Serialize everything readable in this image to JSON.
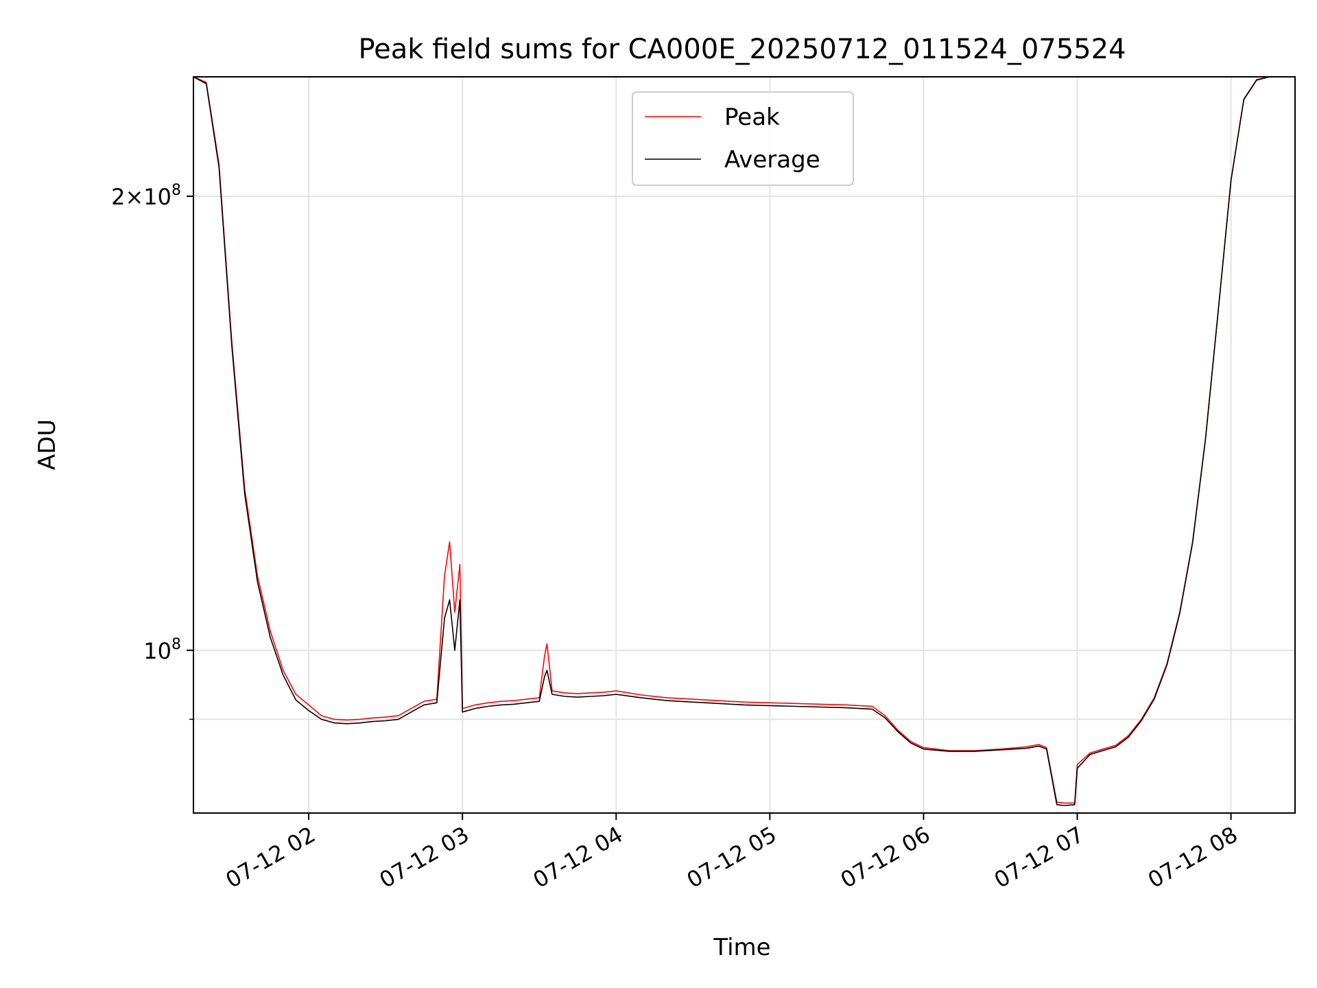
{
  "chart_data": {
    "type": "line",
    "title": "Peak field sums for CA000E_20250712_011524_075524",
    "xlabel": "Time",
    "ylabel": "ADU",
    "yscale": "log",
    "xlim": [
      "2025-07-12 01:15",
      "2025-07-12 08:25"
    ],
    "ylim": [
      78000000,
      240000000
    ],
    "grid": true,
    "legend_position": "top-center",
    "x_ticks": [
      "07-12 02",
      "07-12 03",
      "07-12 04",
      "07-12 05",
      "07-12 06",
      "07-12 07",
      "07-12 08"
    ],
    "x_tick_values": [
      "2025-07-12 02:00",
      "2025-07-12 03:00",
      "2025-07-12 04:00",
      "2025-07-12 05:00",
      "2025-07-12 06:00",
      "2025-07-12 07:00",
      "2025-07-12 08:00"
    ],
    "y_ticks": [
      {
        "value": 100000000,
        "base": "10",
        "exp": "8",
        "mantissa": ""
      },
      {
        "value": 200000000,
        "base": "10",
        "exp": "8",
        "mantissa": "2"
      }
    ],
    "y_minor_ticks": [
      90000000
    ],
    "x": [
      "01:15",
      "01:20",
      "01:25",
      "01:30",
      "01:35",
      "01:40",
      "01:45",
      "01:50",
      "01:55",
      "02:00",
      "02:05",
      "02:10",
      "02:15",
      "02:20",
      "02:25",
      "02:30",
      "02:35",
      "02:40",
      "02:45",
      "02:50",
      "02:53",
      "02:55",
      "02:57",
      "02:59",
      "03:00",
      "03:05",
      "03:10",
      "03:15",
      "03:20",
      "03:25",
      "03:30",
      "03:32",
      "03:33",
      "03:35",
      "03:40",
      "03:45",
      "03:50",
      "03:55",
      "04:00",
      "04:10",
      "04:20",
      "04:30",
      "04:40",
      "04:50",
      "05:00",
      "05:10",
      "05:20",
      "05:30",
      "05:40",
      "05:45",
      "05:50",
      "05:55",
      "06:00",
      "06:10",
      "06:20",
      "06:30",
      "06:40",
      "06:45",
      "06:48",
      "06:52",
      "06:55",
      "06:59",
      "07:00",
      "07:05",
      "07:10",
      "07:15",
      "07:20",
      "07:25",
      "07:30",
      "07:35",
      "07:40",
      "07:45",
      "07:50",
      "07:55",
      "08:00",
      "08:05",
      "08:10",
      "08:15",
      "08:20",
      "08:25"
    ],
    "series": [
      {
        "name": "Peak",
        "color": "#ff0000",
        "values": [
          240000000,
          238000000,
          210000000,
          160000000,
          128000000,
          112000000,
          103000000,
          97000000,
          93500000,
          92000000,
          90500000,
          90000000,
          89900000,
          90000000,
          90200000,
          90300000,
          90500000,
          91500000,
          92500000,
          92800000,
          112000000,
          118000000,
          106000000,
          114000000,
          91500000,
          92000000,
          92300000,
          92500000,
          92600000,
          92800000,
          93000000,
          99000000,
          101000000,
          94000000,
          93700000,
          93600000,
          93700000,
          93800000,
          94000000,
          93400000,
          93000000,
          92800000,
          92600000,
          92400000,
          92300000,
          92200000,
          92100000,
          92000000,
          91800000,
          90500000,
          88500000,
          87000000,
          86200000,
          85800000,
          85800000,
          86000000,
          86300000,
          86600000,
          86200000,
          79300000,
          79200000,
          79200000,
          84000000,
          85500000,
          86000000,
          86500000,
          87800000,
          90000000,
          93000000,
          98000000,
          106000000,
          118000000,
          138000000,
          168000000,
          205000000,
          232000000,
          239000000,
          240000000,
          240000000,
          240000000
        ]
      },
      {
        "name": "Average",
        "color": "#000000",
        "values": [
          240000000,
          237500000,
          209000000,
          159000000,
          127000000,
          111000000,
          102000000,
          96300000,
          92700000,
          91200000,
          90000000,
          89500000,
          89400000,
          89500000,
          89700000,
          89800000,
          90000000,
          91000000,
          92000000,
          92300000,
          105000000,
          108000000,
          100000000,
          108000000,
          91000000,
          91500000,
          91800000,
          92000000,
          92100000,
          92300000,
          92500000,
          96000000,
          97000000,
          93500000,
          93200000,
          93100000,
          93200000,
          93300000,
          93500000,
          93000000,
          92600000,
          92400000,
          92200000,
          92000000,
          91900000,
          91800000,
          91700000,
          91600000,
          91400000,
          90200000,
          88300000,
          86800000,
          86000000,
          85700000,
          85700000,
          85900000,
          86100000,
          86400000,
          86000000,
          79000000,
          78900000,
          79000000,
          83500000,
          85300000,
          85800000,
          86300000,
          87600000,
          89800000,
          92800000,
          97800000,
          105800000,
          117800000,
          137800000,
          167800000,
          204800000,
          231800000,
          238800000,
          240000000,
          240000000,
          240000000
        ]
      }
    ]
  }
}
